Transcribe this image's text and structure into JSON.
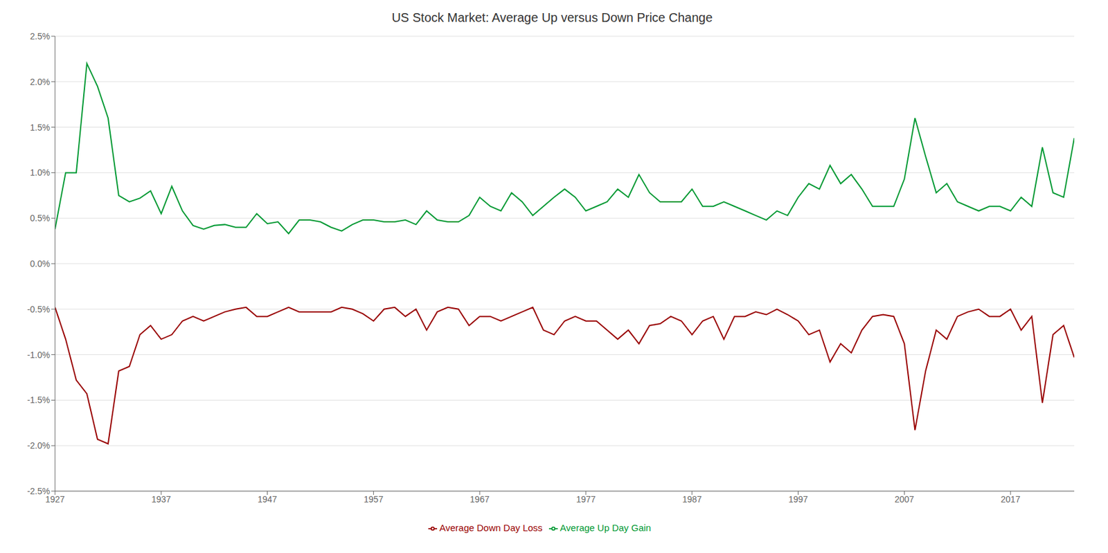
{
  "chart_data": {
    "type": "line",
    "title": "US Stock Market: Average Up versus Down Price Change",
    "x": [
      1927,
      1928,
      1929,
      1930,
      1931,
      1932,
      1933,
      1934,
      1935,
      1936,
      1937,
      1938,
      1939,
      1940,
      1941,
      1942,
      1943,
      1944,
      1945,
      1946,
      1947,
      1948,
      1949,
      1950,
      1951,
      1952,
      1953,
      1954,
      1955,
      1956,
      1957,
      1958,
      1959,
      1960,
      1961,
      1962,
      1963,
      1964,
      1965,
      1966,
      1967,
      1968,
      1969,
      1970,
      1971,
      1972,
      1973,
      1974,
      1975,
      1976,
      1977,
      1978,
      1979,
      1980,
      1981,
      1982,
      1983,
      1984,
      1985,
      1986,
      1987,
      1988,
      1989,
      1990,
      1991,
      1992,
      1993,
      1994,
      1995,
      1996,
      1997,
      1998,
      1999,
      2000,
      2001,
      2002,
      2003,
      2004,
      2005,
      2006,
      2007,
      2008,
      2009,
      2010,
      2011,
      2012,
      2013,
      2014,
      2015,
      2016,
      2017,
      2018,
      2019,
      2020,
      2021,
      2022,
      2023
    ],
    "series": [
      {
        "name": "Average Up Day Gain",
        "color": "#009933",
        "values": [
          0.0038,
          0.01,
          0.01,
          0.022,
          0.0195,
          0.016,
          0.0075,
          0.0068,
          0.0072,
          0.008,
          0.0055,
          0.0085,
          0.0058,
          0.0042,
          0.0038,
          0.0042,
          0.0043,
          0.004,
          0.004,
          0.0055,
          0.0044,
          0.0046,
          0.0033,
          0.0048,
          0.0048,
          0.0046,
          0.004,
          0.0036,
          0.0043,
          0.0048,
          0.0048,
          0.0046,
          0.0046,
          0.0048,
          0.0043,
          0.0058,
          0.0048,
          0.0046,
          0.0046,
          0.0053,
          0.0073,
          0.0063,
          0.0058,
          0.0078,
          0.0068,
          0.0053,
          0.0063,
          0.0073,
          0.0082,
          0.0073,
          0.0058,
          0.0063,
          0.0068,
          0.0082,
          0.0073,
          0.0098,
          0.0078,
          0.0068,
          0.0068,
          0.0068,
          0.0082,
          0.0063,
          0.0063,
          0.0068,
          0.0063,
          0.0058,
          0.0053,
          0.0048,
          0.0058,
          0.0053,
          0.0073,
          0.0088,
          0.0082,
          0.0108,
          0.0088,
          0.0098,
          0.0082,
          0.0063,
          0.0063,
          0.0063,
          0.0093,
          0.016,
          0.0118,
          0.0078,
          0.0088,
          0.0068,
          0.0063,
          0.0058,
          0.0063,
          0.0063,
          0.0058,
          0.0073,
          0.0063,
          0.0128,
          0.0078,
          0.0073,
          0.0138
        ]
      },
      {
        "name": "Average Down Day Loss",
        "color": "#990000",
        "values": [
          -0.0048,
          -0.0083,
          -0.0128,
          -0.0143,
          -0.0193,
          -0.0198,
          -0.0118,
          -0.0113,
          -0.0078,
          -0.0068,
          -0.0083,
          -0.0078,
          -0.0063,
          -0.0058,
          -0.0063,
          -0.0058,
          -0.0053,
          -0.005,
          -0.0048,
          -0.0058,
          -0.0058,
          -0.0053,
          -0.0048,
          -0.0053,
          -0.0053,
          -0.0053,
          -0.0053,
          -0.0048,
          -0.005,
          -0.0055,
          -0.0063,
          -0.005,
          -0.0048,
          -0.0058,
          -0.005,
          -0.0073,
          -0.0053,
          -0.0048,
          -0.005,
          -0.0068,
          -0.0058,
          -0.0058,
          -0.0063,
          -0.0058,
          -0.0053,
          -0.0048,
          -0.0073,
          -0.0078,
          -0.0063,
          -0.0058,
          -0.0063,
          -0.0063,
          -0.0073,
          -0.0083,
          -0.0073,
          -0.0088,
          -0.0068,
          -0.0066,
          -0.0058,
          -0.0063,
          -0.0078,
          -0.0063,
          -0.0058,
          -0.0083,
          -0.0058,
          -0.0058,
          -0.0053,
          -0.0056,
          -0.005,
          -0.0056,
          -0.0063,
          -0.0078,
          -0.0073,
          -0.0108,
          -0.0088,
          -0.0098,
          -0.0073,
          -0.0058,
          -0.0056,
          -0.0058,
          -0.0088,
          -0.0183,
          -0.0118,
          -0.0073,
          -0.0083,
          -0.0058,
          -0.0053,
          -0.005,
          -0.0058,
          -0.0058,
          -0.005,
          -0.0073,
          -0.0058,
          -0.0153,
          -0.0078,
          -0.0068,
          -0.0103
        ]
      }
    ],
    "xlim": [
      1927,
      2023
    ],
    "xticks": [
      1927,
      1937,
      1947,
      1957,
      1967,
      1977,
      1987,
      1997,
      2007,
      2017
    ],
    "ylim": [
      -0.025,
      0.025
    ],
    "yticks": [
      {
        "value": -0.025,
        "label": "-2.5%"
      },
      {
        "value": -0.02,
        "label": "-2.0%"
      },
      {
        "value": -0.015,
        "label": "-1.5%"
      },
      {
        "value": -0.01,
        "label": "-1.0%"
      },
      {
        "value": -0.005,
        "label": "-0.5%"
      },
      {
        "value": 0.0,
        "label": "0.0%"
      },
      {
        "value": 0.005,
        "label": "0.5%"
      },
      {
        "value": 0.01,
        "label": "1.0%"
      },
      {
        "value": 0.015,
        "label": "1.5%"
      },
      {
        "value": 0.02,
        "label": "2.0%"
      },
      {
        "value": 0.025,
        "label": "2.5%"
      }
    ],
    "grid": true,
    "legend": "bottom"
  }
}
